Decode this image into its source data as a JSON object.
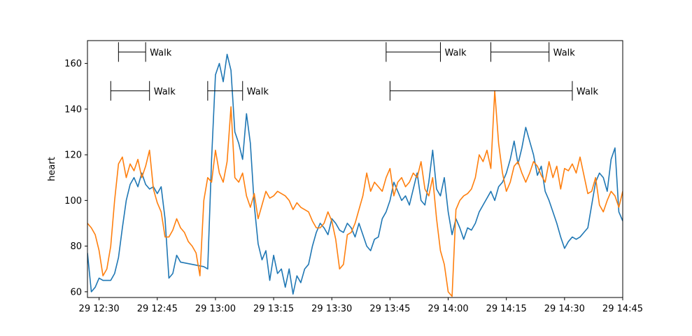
{
  "chart_data": {
    "type": "line",
    "title": "",
    "xlabel": "",
    "ylabel": "heart",
    "xlim": [
      "12:27",
      "14:45"
    ],
    "ylim": [
      57.5,
      170
    ],
    "grid": false,
    "x_ticks": [
      "29 12:30",
      "29 12:45",
      "29 13:00",
      "29 13:15",
      "29 13:30",
      "29 13:45",
      "29 14:00",
      "29 14:15",
      "29 14:30",
      "29 14:45"
    ],
    "y_ticks": [
      60,
      80,
      100,
      120,
      140,
      160
    ],
    "series": [
      {
        "color": "#1f77b4",
        "points": [
          [
            "12:27",
            77
          ],
          [
            "12:28",
            60
          ],
          [
            "12:29",
            62
          ],
          [
            "12:30",
            66
          ],
          [
            "12:31",
            65
          ],
          [
            "12:33",
            65
          ],
          [
            "12:34",
            68
          ],
          [
            "12:35",
            75
          ],
          [
            "12:36",
            88
          ],
          [
            "12:37",
            100
          ],
          [
            "12:38",
            107
          ],
          [
            "12:39",
            110
          ],
          [
            "12:40",
            106
          ],
          [
            "12:41",
            112
          ],
          [
            "12:42",
            107
          ],
          [
            "12:43",
            105
          ],
          [
            "12:44",
            106
          ],
          [
            "12:45",
            103
          ],
          [
            "12:46",
            106
          ],
          [
            "12:47",
            92
          ],
          [
            "12:48",
            66
          ],
          [
            "12:49",
            68
          ],
          [
            "12:50",
            76
          ],
          [
            "12:51",
            73
          ],
          [
            "12:57",
            71
          ],
          [
            "12:58",
            70
          ],
          [
            "12:59",
            118
          ],
          [
            "13:00",
            155
          ],
          [
            "13:01",
            160
          ],
          [
            "13:02",
            152
          ],
          [
            "13:03",
            164
          ],
          [
            "13:04",
            157
          ],
          [
            "13:05",
            130
          ],
          [
            "13:06",
            125
          ],
          [
            "13:07",
            118
          ],
          [
            "13:08",
            138
          ],
          [
            "13:09",
            125
          ],
          [
            "13:10",
            98
          ],
          [
            "13:11",
            81
          ],
          [
            "13:12",
            74
          ],
          [
            "13:13",
            78
          ],
          [
            "13:14",
            65
          ],
          [
            "13:15",
            76
          ],
          [
            "13:16",
            68
          ],
          [
            "13:17",
            70
          ],
          [
            "13:18",
            62
          ],
          [
            "13:19",
            70
          ],
          [
            "13:20",
            59
          ],
          [
            "13:21",
            67
          ],
          [
            "13:22",
            64
          ],
          [
            "13:23",
            70
          ],
          [
            "13:24",
            72
          ],
          [
            "13:25",
            80
          ],
          [
            "13:26",
            86
          ],
          [
            "13:27",
            90
          ],
          [
            "13:28",
            88
          ],
          [
            "13:29",
            85
          ],
          [
            "13:30",
            92
          ],
          [
            "13:31",
            90
          ],
          [
            "13:32",
            87
          ],
          [
            "13:33",
            86
          ],
          [
            "13:34",
            90
          ],
          [
            "13:35",
            88
          ],
          [
            "13:36",
            84
          ],
          [
            "13:37",
            90
          ],
          [
            "13:38",
            85
          ],
          [
            "13:39",
            80
          ],
          [
            "13:40",
            78
          ],
          [
            "13:41",
            83
          ],
          [
            "13:42",
            84
          ],
          [
            "13:43",
            92
          ],
          [
            "13:44",
            95
          ],
          [
            "13:45",
            100
          ],
          [
            "13:46",
            108
          ],
          [
            "13:47",
            104
          ],
          [
            "13:48",
            100
          ],
          [
            "13:49",
            102
          ],
          [
            "13:50",
            98
          ],
          [
            "13:51",
            105
          ],
          [
            "13:52",
            112
          ],
          [
            "13:53",
            100
          ],
          [
            "13:54",
            98
          ],
          [
            "13:55",
            108
          ],
          [
            "13:56",
            122
          ],
          [
            "13:57",
            105
          ],
          [
            "13:58",
            102
          ],
          [
            "13:59",
            110
          ],
          [
            "14:00",
            95
          ],
          [
            "14:01",
            85
          ],
          [
            "14:02",
            92
          ],
          [
            "14:03",
            88
          ],
          [
            "14:04",
            83
          ],
          [
            "14:05",
            88
          ],
          [
            "14:06",
            87
          ],
          [
            "14:07",
            90
          ],
          [
            "14:08",
            95
          ],
          [
            "14:09",
            98
          ],
          [
            "14:10",
            101
          ],
          [
            "14:11",
            104
          ],
          [
            "14:12",
            100
          ],
          [
            "14:13",
            106
          ],
          [
            "14:14",
            108
          ],
          [
            "14:15",
            112
          ],
          [
            "14:16",
            118
          ],
          [
            "14:17",
            126
          ],
          [
            "14:18",
            116
          ],
          [
            "14:19",
            123
          ],
          [
            "14:20",
            132
          ],
          [
            "14:21",
            126
          ],
          [
            "14:22",
            120
          ],
          [
            "14:23",
            111
          ],
          [
            "14:24",
            115
          ],
          [
            "14:25",
            104
          ],
          [
            "14:26",
            100
          ],
          [
            "14:27",
            95
          ],
          [
            "14:28",
            90
          ],
          [
            "14:29",
            84
          ],
          [
            "14:30",
            79
          ],
          [
            "14:31",
            82
          ],
          [
            "14:32",
            84
          ],
          [
            "14:33",
            83
          ],
          [
            "14:34",
            84
          ],
          [
            "14:35",
            86
          ],
          [
            "14:36",
            88
          ],
          [
            "14:37",
            98
          ],
          [
            "14:38",
            108
          ],
          [
            "14:39",
            112
          ],
          [
            "14:40",
            110
          ],
          [
            "14:41",
            104
          ],
          [
            "14:42",
            118
          ],
          [
            "14:43",
            123
          ],
          [
            "14:44",
            95
          ],
          [
            "14:45",
            91
          ]
        ]
      },
      {
        "color": "#ff7f0e",
        "points": [
          [
            "12:27",
            90
          ],
          [
            "12:28",
            88
          ],
          [
            "12:29",
            85
          ],
          [
            "12:30",
            78
          ],
          [
            "12:31",
            67
          ],
          [
            "12:32",
            70
          ],
          [
            "12:33",
            80
          ],
          [
            "12:34",
            100
          ],
          [
            "12:35",
            116
          ],
          [
            "12:36",
            119
          ],
          [
            "12:37",
            110
          ],
          [
            "12:38",
            116
          ],
          [
            "12:39",
            113
          ],
          [
            "12:40",
            118
          ],
          [
            "12:41",
            110
          ],
          [
            "12:42",
            115
          ],
          [
            "12:43",
            122
          ],
          [
            "12:44",
            105
          ],
          [
            "12:45",
            99
          ],
          [
            "12:46",
            95
          ],
          [
            "12:47",
            84
          ],
          [
            "12:48",
            84
          ],
          [
            "12:49",
            87
          ],
          [
            "12:50",
            92
          ],
          [
            "12:51",
            88
          ],
          [
            "12:52",
            86
          ],
          [
            "12:53",
            82
          ],
          [
            "12:54",
            80
          ],
          [
            "12:55",
            77
          ],
          [
            "12:56",
            67
          ],
          [
            "12:57",
            100
          ],
          [
            "12:58",
            110
          ],
          [
            "12:59",
            108
          ],
          [
            "13:00",
            122
          ],
          [
            "13:01",
            112
          ],
          [
            "13:02",
            108
          ],
          [
            "13:03",
            117
          ],
          [
            "13:04",
            141
          ],
          [
            "13:05",
            110
          ],
          [
            "13:06",
            108
          ],
          [
            "13:07",
            112
          ],
          [
            "13:08",
            102
          ],
          [
            "13:09",
            97
          ],
          [
            "13:10",
            103
          ],
          [
            "13:11",
            92
          ],
          [
            "13:12",
            98
          ],
          [
            "13:13",
            104
          ],
          [
            "13:14",
            101
          ],
          [
            "13:15",
            102
          ],
          [
            "13:16",
            104
          ],
          [
            "13:17",
            103
          ],
          [
            "13:18",
            102
          ],
          [
            "13:19",
            100
          ],
          [
            "13:20",
            96
          ],
          [
            "13:21",
            99
          ],
          [
            "13:22",
            97
          ],
          [
            "13:23",
            96
          ],
          [
            "13:24",
            95
          ],
          [
            "13:25",
            91
          ],
          [
            "13:26",
            88
          ],
          [
            "13:27",
            88
          ],
          [
            "13:28",
            90
          ],
          [
            "13:29",
            95
          ],
          [
            "13:30",
            91
          ],
          [
            "13:31",
            83
          ],
          [
            "13:32",
            70
          ],
          [
            "13:33",
            72
          ],
          [
            "13:34",
            85
          ],
          [
            "13:35",
            86
          ],
          [
            "13:36",
            90
          ],
          [
            "13:37",
            96
          ],
          [
            "13:38",
            102
          ],
          [
            "13:39",
            112
          ],
          [
            "13:40",
            104
          ],
          [
            "13:41",
            108
          ],
          [
            "13:42",
            106
          ],
          [
            "13:43",
            104
          ],
          [
            "13:44",
            110
          ],
          [
            "13:45",
            114
          ],
          [
            "13:46",
            102
          ],
          [
            "13:47",
            108
          ],
          [
            "13:48",
            110
          ],
          [
            "13:49",
            106
          ],
          [
            "13:50",
            108
          ],
          [
            "13:51",
            112
          ],
          [
            "13:52",
            110
          ],
          [
            "13:53",
            117
          ],
          [
            "13:54",
            105
          ],
          [
            "13:55",
            102
          ],
          [
            "13:56",
            110
          ],
          [
            "13:57",
            92
          ],
          [
            "13:58",
            78
          ],
          [
            "13:59",
            72
          ],
          [
            "14:00",
            60
          ],
          [
            "14:01",
            58
          ],
          [
            "14:02",
            96
          ],
          [
            "14:03",
            100
          ],
          [
            "14:04",
            102
          ],
          [
            "14:05",
            103
          ],
          [
            "14:06",
            105
          ],
          [
            "14:07",
            110
          ],
          [
            "14:08",
            120
          ],
          [
            "14:09",
            117
          ],
          [
            "14:10",
            122
          ],
          [
            "14:11",
            114
          ],
          [
            "14:12",
            148
          ],
          [
            "14:13",
            125
          ],
          [
            "14:14",
            112
          ],
          [
            "14:15",
            104
          ],
          [
            "14:16",
            108
          ],
          [
            "14:17",
            115
          ],
          [
            "14:18",
            117
          ],
          [
            "14:19",
            112
          ],
          [
            "14:20",
            108
          ],
          [
            "14:21",
            112
          ],
          [
            "14:22",
            117
          ],
          [
            "14:23",
            115
          ],
          [
            "14:24",
            111
          ],
          [
            "14:25",
            108
          ],
          [
            "14:26",
            117
          ],
          [
            "14:27",
            110
          ],
          [
            "14:28",
            115
          ],
          [
            "14:29",
            105
          ],
          [
            "14:30",
            114
          ],
          [
            "14:31",
            113
          ],
          [
            "14:32",
            116
          ],
          [
            "14:33",
            112
          ],
          [
            "14:34",
            119
          ],
          [
            "14:35",
            111
          ],
          [
            "14:36",
            103
          ],
          [
            "14:37",
            104
          ],
          [
            "14:38",
            110
          ],
          [
            "14:39",
            98
          ],
          [
            "14:40",
            95
          ],
          [
            "14:41",
            100
          ],
          [
            "14:42",
            104
          ],
          [
            "14:43",
            102
          ],
          [
            "14:44",
            97
          ],
          [
            "14:45",
            104
          ]
        ]
      }
    ],
    "annotations": [
      {
        "label": "Walk",
        "start": "12:35",
        "end": "12:42",
        "y": 165
      },
      {
        "label": "Walk",
        "start": "12:33",
        "end": "12:43",
        "y": 148
      },
      {
        "label": "Walk",
        "start": "12:58",
        "end": "13:07",
        "y": 148
      },
      {
        "label": "Walk",
        "start": "13:44",
        "end": "13:58",
        "y": 165
      },
      {
        "label": "Walk",
        "start": "13:45",
        "end": "14:32",
        "y": 148
      },
      {
        "label": "Walk",
        "start": "14:11",
        "end": "14:26",
        "y": 165
      }
    ]
  }
}
